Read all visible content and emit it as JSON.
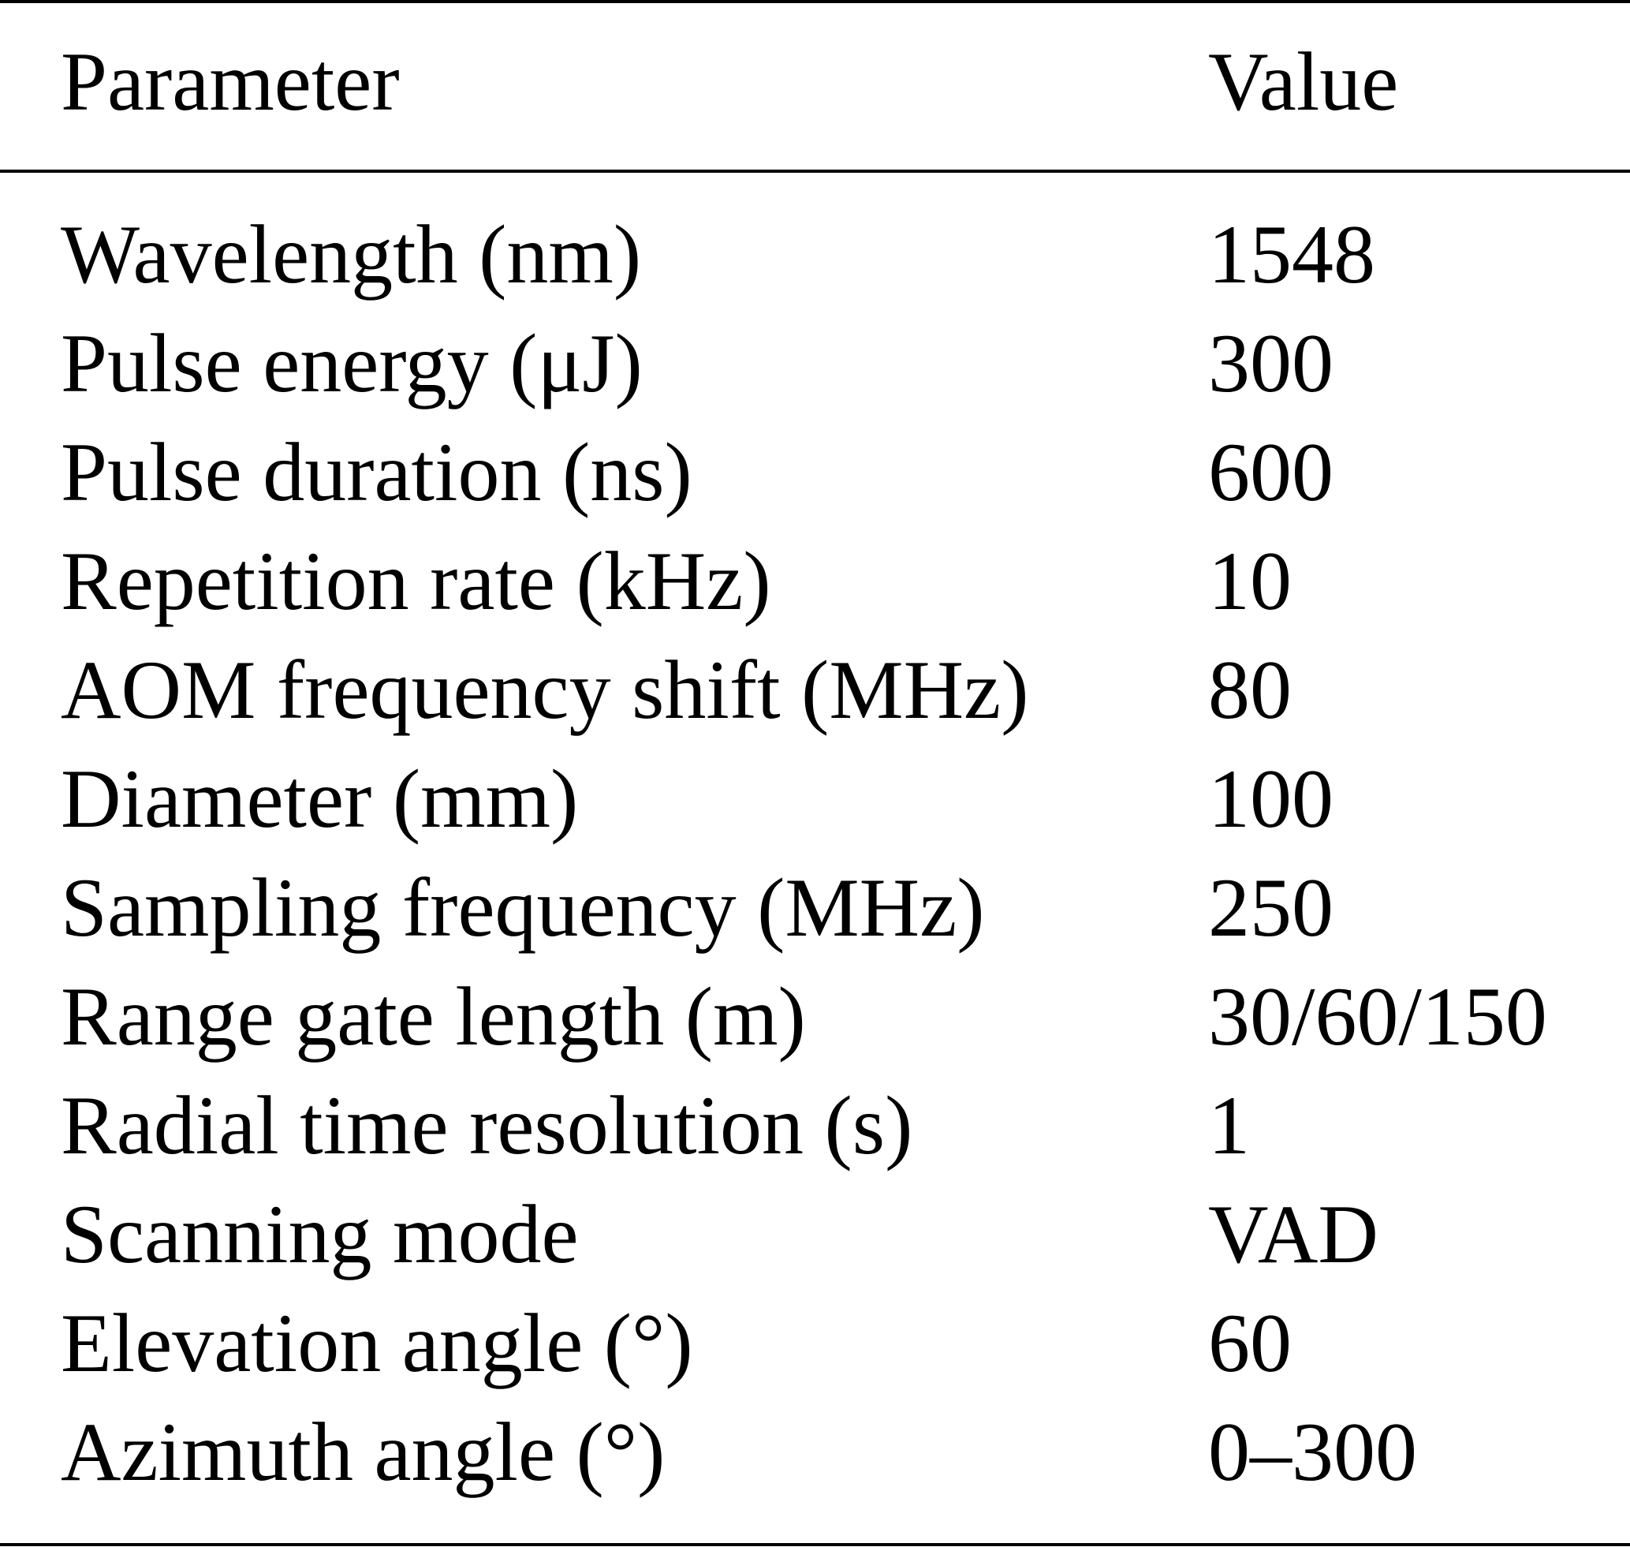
{
  "table": {
    "headers": {
      "parameter": "Parameter",
      "value": "Value"
    },
    "rows": [
      {
        "parameter": "Wavelength (nm)",
        "value": "1548"
      },
      {
        "parameter": "Pulse energy (μJ)",
        "value": "300"
      },
      {
        "parameter": "Pulse duration (ns)",
        "value": "600"
      },
      {
        "parameter": "Repetition rate (kHz)",
        "value": "10"
      },
      {
        "parameter": "AOM frequency shift (MHz)",
        "value": "80"
      },
      {
        "parameter": "Diameter (mm)",
        "value": "100"
      },
      {
        "parameter": "Sampling frequency (MHz)",
        "value": "250"
      },
      {
        "parameter": "Range gate length (m)",
        "value": "30/60/150"
      },
      {
        "parameter": "Radial time resolution (s)",
        "value": "1"
      },
      {
        "parameter": "Scanning mode",
        "value": "VAD"
      },
      {
        "parameter": "Elevation angle (°)",
        "value": "60"
      },
      {
        "parameter": "Azimuth angle (°)",
        "value": "0–300"
      }
    ]
  }
}
